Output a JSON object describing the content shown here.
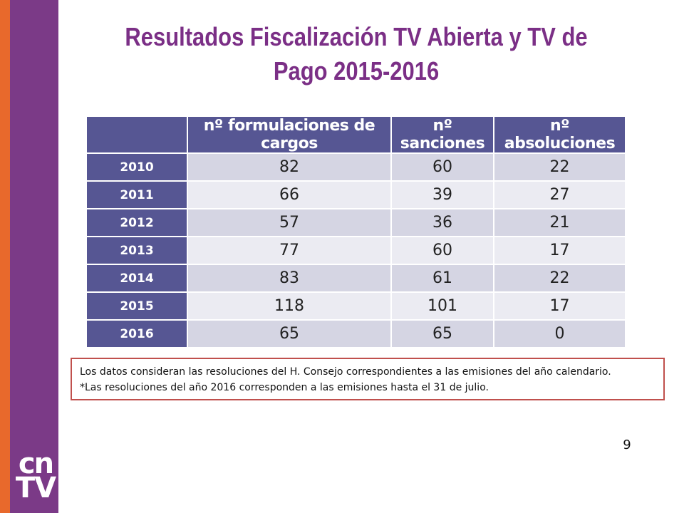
{
  "slide": {
    "title": "Resultados Fiscalización TV Abierta y TV de Pago 2015-2016",
    "page_number": "9",
    "logo": {
      "top": "cn",
      "bottom": "TV"
    }
  },
  "table": {
    "headers": [
      "",
      "nº formulaciones de cargos",
      "nº sanciones",
      "nº absoluciones"
    ],
    "rows": [
      {
        "year": "2010",
        "values": [
          "82",
          "60",
          "22"
        ]
      },
      {
        "year": "2011",
        "values": [
          "66",
          "39",
          "27"
        ]
      },
      {
        "year": "2012",
        "values": [
          "57",
          "36",
          "21"
        ]
      },
      {
        "year": "2013",
        "values": [
          "77",
          "60",
          "17"
        ]
      },
      {
        "year": "2014",
        "values": [
          "83",
          "61",
          "22"
        ]
      },
      {
        "year": "2015",
        "values": [
          "118",
          "101",
          "17"
        ]
      },
      {
        "year": "2016",
        "values": [
          "65",
          "65",
          "0"
        ]
      }
    ]
  },
  "note": {
    "line1": "Los datos consideran las resoluciones del H. Consejo correspondientes a las emisiones del año calendario.",
    "line2": "*Las resoluciones del año 2016 corresponden a las emisiones hasta el 31 de julio."
  },
  "colors": {
    "accent_orange": "#e8692c",
    "brand_purple": "#7b3a87",
    "title_purple": "#7b2f86",
    "table_header": "#565693",
    "row_dark": "#d5d5e3",
    "row_light": "#ebebf2",
    "note_border": "#c0504d"
  }
}
